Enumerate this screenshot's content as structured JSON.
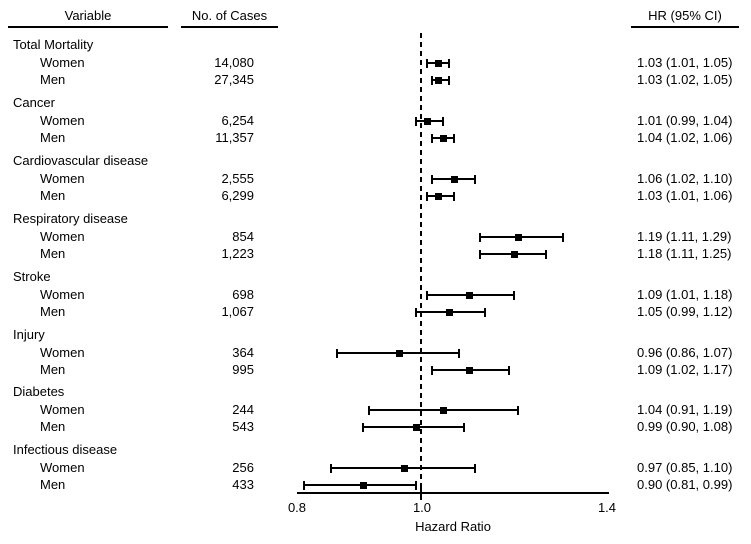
{
  "figure": {
    "headers": {
      "variable": "Variable",
      "cases": "No. of Cases",
      "hr": "HR (95% CI)"
    },
    "axis": {
      "tick_labels": [
        "0.8",
        "1.0",
        "1.4"
      ],
      "label": "Hazard Ratio"
    }
  },
  "chart_data": {
    "type": "scatter",
    "subtype": "forest-plot",
    "title": "",
    "xlabel": "Hazard Ratio",
    "ylabel": "",
    "x_scale": "log",
    "xlim": [
      0.8,
      1.4
    ],
    "x_ticks": [
      0.8,
      1.0,
      1.4
    ],
    "reference_line": 1.0,
    "columns": [
      "Variable",
      "No. of Cases",
      "HR (95% CI)"
    ],
    "groups": [
      {
        "label": "Total Mortality",
        "rows": [
          {
            "sex": "Women",
            "cases": "14,080",
            "hr": 1.03,
            "ci_low": 1.01,
            "ci_high": 1.05,
            "hr_text": "1.03 (1.01, 1.05)"
          },
          {
            "sex": "Men",
            "cases": "27,345",
            "hr": 1.03,
            "ci_low": 1.02,
            "ci_high": 1.05,
            "hr_text": "1.03 (1.02, 1.05)"
          }
        ]
      },
      {
        "label": "Cancer",
        "rows": [
          {
            "sex": "Women",
            "cases": "6,254",
            "hr": 1.01,
            "ci_low": 0.99,
            "ci_high": 1.04,
            "hr_text": "1.01 (0.99, 1.04)"
          },
          {
            "sex": "Men",
            "cases": "11,357",
            "hr": 1.04,
            "ci_low": 1.02,
            "ci_high": 1.06,
            "hr_text": "1.04 (1.02, 1.06)"
          }
        ]
      },
      {
        "label": "Cardiovascular disease",
        "rows": [
          {
            "sex": "Women",
            "cases": "2,555",
            "hr": 1.06,
            "ci_low": 1.02,
            "ci_high": 1.1,
            "hr_text": "1.06 (1.02, 1.10)"
          },
          {
            "sex": "Men",
            "cases": "6,299",
            "hr": 1.03,
            "ci_low": 1.01,
            "ci_high": 1.06,
            "hr_text": "1.03 (1.01, 1.06)"
          }
        ]
      },
      {
        "label": "Respiratory disease",
        "rows": [
          {
            "sex": "Women",
            "cases": "854",
            "hr": 1.19,
            "ci_low": 1.11,
            "ci_high": 1.29,
            "hr_text": "1.19 (1.11, 1.29)"
          },
          {
            "sex": "Men",
            "cases": "1,223",
            "hr": 1.18,
            "ci_low": 1.11,
            "ci_high": 1.25,
            "hr_text": "1.18 (1.11, 1.25)"
          }
        ]
      },
      {
        "label": "Stroke",
        "rows": [
          {
            "sex": "Women",
            "cases": "698",
            "hr": 1.09,
            "ci_low": 1.01,
            "ci_high": 1.18,
            "hr_text": "1.09 (1.01, 1.18)"
          },
          {
            "sex": "Men",
            "cases": "1,067",
            "hr": 1.05,
            "ci_low": 0.99,
            "ci_high": 1.12,
            "hr_text": "1.05 (0.99, 1.12)"
          }
        ]
      },
      {
        "label": "Injury",
        "rows": [
          {
            "sex": "Women",
            "cases": "364",
            "hr": 0.96,
            "ci_low": 0.86,
            "ci_high": 1.07,
            "hr_text": "0.96 (0.86, 1.07)"
          },
          {
            "sex": "Men",
            "cases": "995",
            "hr": 1.09,
            "ci_low": 1.02,
            "ci_high": 1.17,
            "hr_text": "1.09 (1.02, 1.17)"
          }
        ]
      },
      {
        "label": "Diabetes",
        "rows": [
          {
            "sex": "Women",
            "cases": "244",
            "hr": 1.04,
            "ci_low": 0.91,
            "ci_high": 1.19,
            "hr_text": "1.04 (0.91, 1.19)"
          },
          {
            "sex": "Men",
            "cases": "543",
            "hr": 0.99,
            "ci_low": 0.9,
            "ci_high": 1.08,
            "hr_text": "0.99 (0.90, 1.08)"
          }
        ]
      },
      {
        "label": "Infectious disease",
        "rows": [
          {
            "sex": "Women",
            "cases": "256",
            "hr": 0.97,
            "ci_low": 0.85,
            "ci_high": 1.1,
            "hr_text": "0.97 (0.85, 1.10)"
          },
          {
            "sex": "Men",
            "cases": "433",
            "hr": 0.9,
            "ci_low": 0.81,
            "ci_high": 0.99,
            "hr_text": "0.90 (0.81, 0.99)"
          }
        ]
      }
    ]
  }
}
